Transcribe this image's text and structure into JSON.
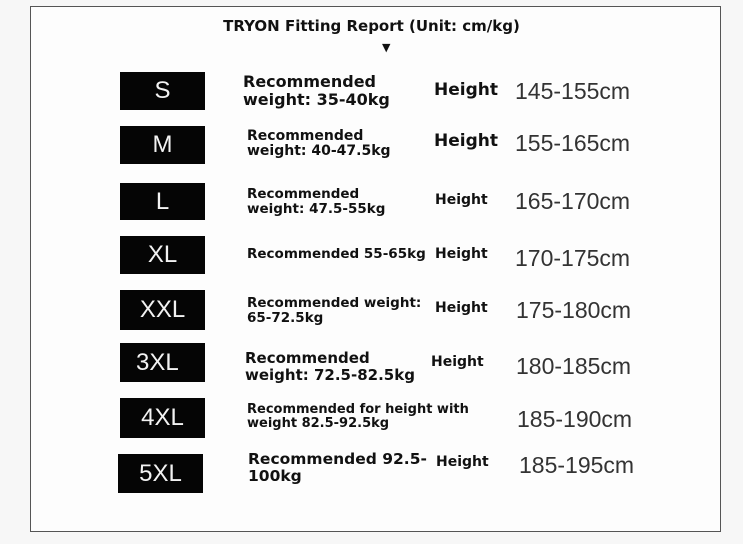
{
  "title": "TRYON Fitting Report (Unit: cm/kg)",
  "arrow_icon": "down-triangle-icon",
  "rows": [
    {
      "size": "S",
      "weight_line1": "Recommended",
      "weight_line2": "weight: 35-40kg",
      "height_label": "Height",
      "height_range": "145-155cm"
    },
    {
      "size": "M",
      "weight_line1": "Recommended",
      "weight_line2": "weight: 40-47.5kg",
      "height_label": "Height",
      "height_range": "155-165cm"
    },
    {
      "size": "L",
      "weight_line1": "Recommended",
      "weight_line2": "weight: 47.5-55kg",
      "height_label": "Height",
      "height_range": "165-170cm"
    },
    {
      "size": "XL",
      "weight_line1": "Recommended 55-65kg",
      "weight_line2": "",
      "height_label": "Height",
      "height_range": "170-175cm"
    },
    {
      "size": "XXL",
      "weight_line1": "Recommended weight:",
      "weight_line2": "65-72.5kg",
      "height_label": "Height",
      "height_range": "175-180cm"
    },
    {
      "size": "3XL",
      "weight_line1": "Recommended",
      "weight_line2": "weight: 72.5-82.5kg",
      "height_label": "Height",
      "height_range": "180-185cm"
    },
    {
      "size": "4XL",
      "weight_line1": "Recommended for height with",
      "weight_line2": "weight 82.5-92.5kg",
      "height_label": "",
      "height_range": "185-190cm"
    },
    {
      "size": "5XL",
      "weight_line1": "Recommended 92.5-",
      "weight_line2": "100kg",
      "height_label": "Height",
      "height_range": "185-195cm"
    }
  ]
}
